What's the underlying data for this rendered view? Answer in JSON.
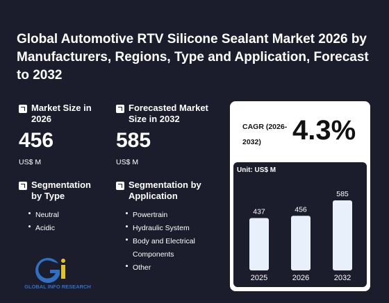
{
  "title": "Global Automotive RTV Silicone Sealant Market 2026 by Manufacturers, Regions, Type and Application, Forecast to 2032",
  "metrics": {
    "market_size_label": "Market Size in 2026",
    "market_size_value": "456",
    "market_size_unit": "US$ M",
    "forecast_label": "Forecasted Market Size in 2032",
    "forecast_value": "585",
    "forecast_unit": "US$ M"
  },
  "segmentation": {
    "type_label": "Segmentation by Type",
    "type_items": [
      "Neutral",
      "Acidic"
    ],
    "application_label": "Segmentation by Application",
    "application_items": [
      "Powertrain",
      "Hydraulic System",
      "Body and Electrical Components",
      "Other"
    ]
  },
  "cagr": {
    "label": "CAGR (2026-2032)",
    "value": "4.3%"
  },
  "logo_text": "GLOBAL INFO RESEARCH",
  "colors": {
    "background": "#1b1d2c",
    "bar": "#e8f0fb",
    "card": "#ffffff"
  },
  "chart_data": {
    "type": "bar",
    "unit_label": "Unit: US$ M",
    "categories": [
      "2025",
      "2026",
      "2032"
    ],
    "values": [
      437,
      456,
      585
    ],
    "ylim": [
      0,
      600
    ],
    "grid": false
  }
}
